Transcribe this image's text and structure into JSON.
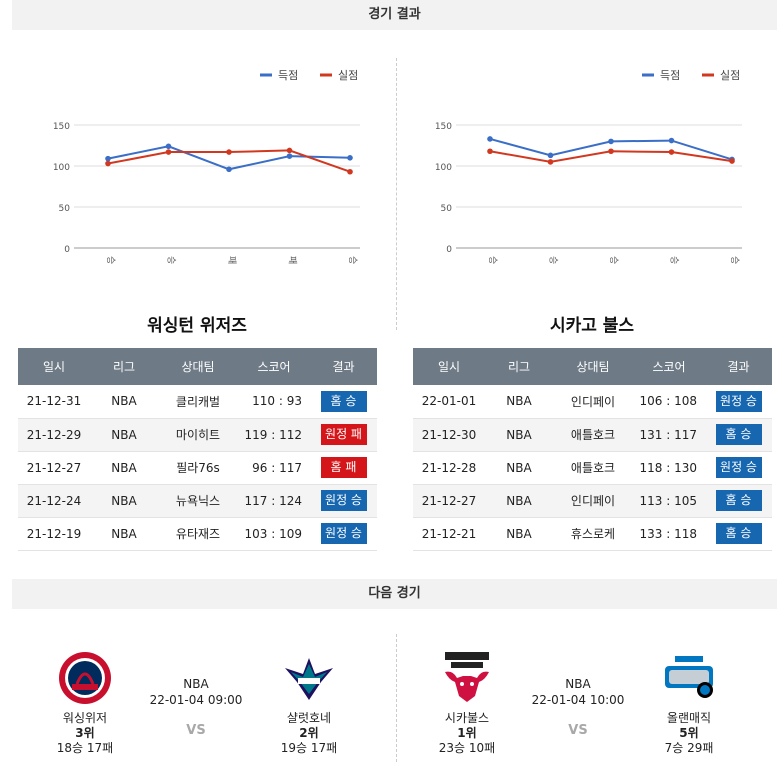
{
  "results_header": "경기 결과",
  "next_header": "다음 경기",
  "legend": {
    "scored": "득점",
    "conceded": "실점"
  },
  "colors": {
    "scored": "#3a6ec7",
    "conceded": "#d1381f",
    "win": "#1766b0",
    "loss": "#d4161b",
    "table_header": "#6e7a86"
  },
  "columns": [
    "일시",
    "리그",
    "상대팀",
    "스코어",
    "결과"
  ],
  "teams": [
    {
      "name": "워싱턴 위저즈",
      "games": [
        {
          "date": "21-12-31",
          "league": "NBA",
          "opponent": "클리캐벌",
          "score": "110 : 93",
          "result": "홈 승",
          "win": true
        },
        {
          "date": "21-12-29",
          "league": "NBA",
          "opponent": "마이히트",
          "score": "119 : 112",
          "result": "원정 패",
          "win": false
        },
        {
          "date": "21-12-27",
          "league": "NBA",
          "opponent": "필라76s",
          "score": "96 : 117",
          "result": "홈 패",
          "win": false
        },
        {
          "date": "21-12-24",
          "league": "NBA",
          "opponent": "뉴욕닉스",
          "score": "117 : 124",
          "result": "원정 승",
          "win": true
        },
        {
          "date": "21-12-19",
          "league": "NBA",
          "opponent": "유타재즈",
          "score": "103 : 109",
          "result": "원정 승",
          "win": true
        }
      ]
    },
    {
      "name": "시카고 불스",
      "games": [
        {
          "date": "22-01-01",
          "league": "NBA",
          "opponent": "인디페이",
          "score": "106 : 108",
          "result": "원정 승",
          "win": true
        },
        {
          "date": "21-12-30",
          "league": "NBA",
          "opponent": "애틀호크",
          "score": "131 : 117",
          "result": "홈 승",
          "win": true
        },
        {
          "date": "21-12-28",
          "league": "NBA",
          "opponent": "애틀호크",
          "score": "118 : 130",
          "result": "원정 승",
          "win": true
        },
        {
          "date": "21-12-27",
          "league": "NBA",
          "opponent": "인디페이",
          "score": "113 : 105",
          "result": "홈 승",
          "win": true
        },
        {
          "date": "21-12-21",
          "league": "NBA",
          "opponent": "휴스로케",
          "score": "133 : 118",
          "result": "홈 승",
          "win": true
        }
      ]
    }
  ],
  "chart_data": [
    {
      "type": "line",
      "categories": [
        "승",
        "승",
        "패",
        "패",
        "승"
      ],
      "series": [
        {
          "name": "득점",
          "values": [
            109,
            124,
            96,
            112,
            110
          ]
        },
        {
          "name": "실점",
          "values": [
            103,
            117,
            117,
            119,
            93
          ]
        }
      ],
      "yticks": [
        0,
        50,
        100,
        150
      ],
      "ylim": [
        0,
        150
      ],
      "legend": "top-right",
      "grid": true
    },
    {
      "type": "line",
      "categories": [
        "승",
        "승",
        "승",
        "승",
        "승"
      ],
      "series": [
        {
          "name": "득점",
          "values": [
            133,
            113,
            130,
            131,
            108
          ]
        },
        {
          "name": "실점",
          "values": [
            118,
            105,
            118,
            117,
            106
          ]
        }
      ],
      "yticks": [
        0,
        50,
        100,
        150
      ],
      "ylim": [
        0,
        150
      ],
      "legend": "top-right",
      "grid": true
    }
  ],
  "next_games": [
    {
      "league": "NBA",
      "datetime": "22-01-04 09:00",
      "vs": "VS",
      "home": {
        "name": "워싱위저",
        "rank": "3위",
        "record": "18승 17패",
        "logo_icon": "wizards-logo-icon"
      },
      "away": {
        "name": "샬럿호네",
        "rank": "2위",
        "record": "19승 17패",
        "logo_icon": "hornets-logo-icon"
      }
    },
    {
      "league": "NBA",
      "datetime": "22-01-04 10:00",
      "vs": "VS",
      "home": {
        "name": "시카불스",
        "rank": "1위",
        "record": "23승 10패",
        "logo_icon": "bulls-logo-icon"
      },
      "away": {
        "name": "올랜매직",
        "rank": "5위",
        "record": "7승 29패",
        "logo_icon": "magic-logo-icon"
      }
    }
  ]
}
